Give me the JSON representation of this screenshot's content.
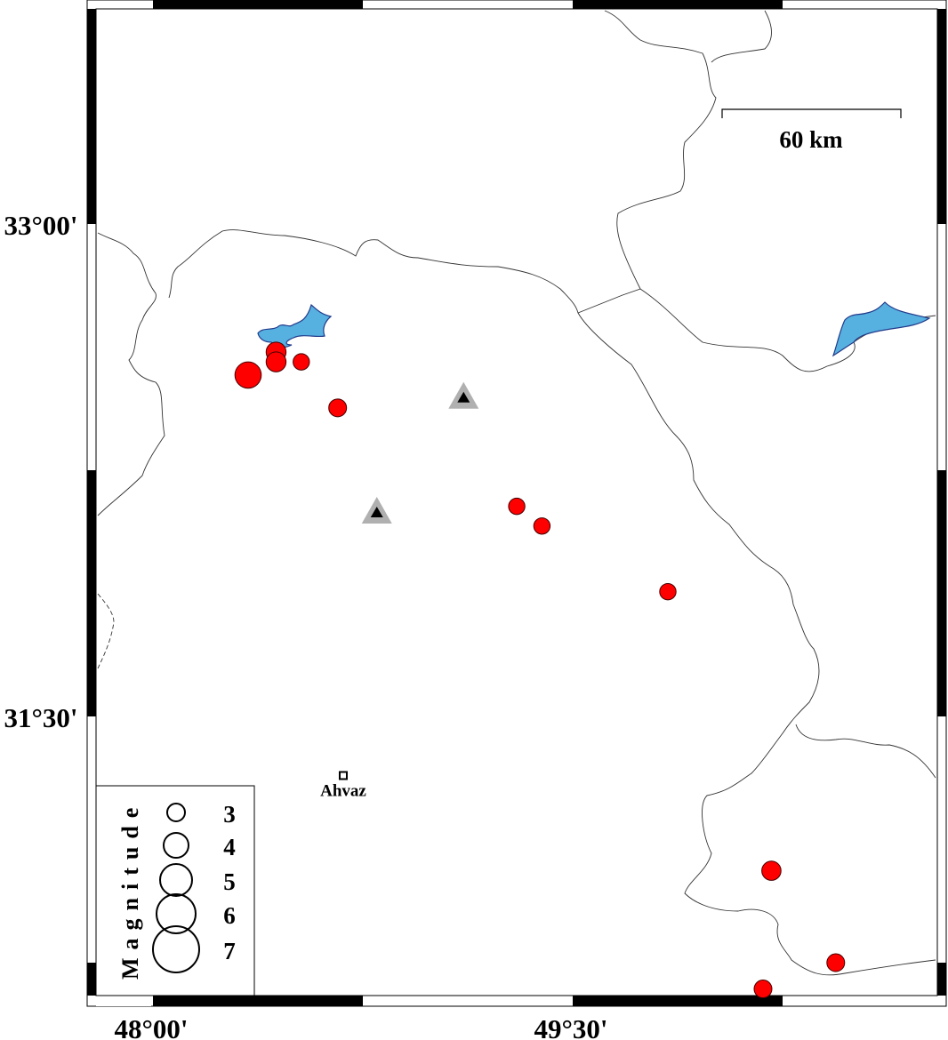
{
  "map": {
    "lon_ticks": [
      {
        "value": 48.0,
        "label": "48°00'"
      },
      {
        "value": 49.5,
        "label": "49°30'"
      }
    ],
    "lat_ticks": [
      {
        "value": 33.0,
        "label": "33°00'"
      },
      {
        "value": 31.5,
        "label": "31°30'"
      }
    ],
    "scale_bar": {
      "label": "60 km"
    },
    "colors": {
      "event": "#ff0000",
      "water": "#56b0e0",
      "station_outer": "#b0b0b0",
      "station_inner": "#000000"
    },
    "events": [
      {
        "lon": 48.34,
        "lat": 32.54,
        "mag": 4.2
      },
      {
        "lon": 48.44,
        "lat": 32.61,
        "mag": 3.3
      },
      {
        "lon": 48.44,
        "lat": 32.58,
        "mag": 3.3
      },
      {
        "lon": 48.53,
        "lat": 32.58,
        "mag": 2.8
      },
      {
        "lon": 48.66,
        "lat": 32.44,
        "mag": 3.0
      },
      {
        "lon": 49.3,
        "lat": 32.14,
        "mag": 2.8
      },
      {
        "lon": 49.39,
        "lat": 32.08,
        "mag": 2.8
      },
      {
        "lon": 49.84,
        "lat": 31.88,
        "mag": 2.8
      },
      {
        "lon": 50.21,
        "lat": 31.03,
        "mag": 3.2
      },
      {
        "lon": 50.44,
        "lat": 30.75,
        "mag": 3.0
      },
      {
        "lon": 50.18,
        "lat": 30.67,
        "mag": 3.0
      }
    ],
    "stations": [
      {
        "lon": 49.11,
        "lat": 32.47
      },
      {
        "lon": 48.8,
        "lat": 32.12
      }
    ],
    "cities": [
      {
        "name": "Ahvaz",
        "lon": 48.68,
        "lat": 31.32
      }
    ]
  },
  "legend": {
    "title": "Magnitude",
    "items": [
      {
        "mag": 3,
        "label": "3"
      },
      {
        "mag": 4,
        "label": "4"
      },
      {
        "mag": 5,
        "label": "5"
      },
      {
        "mag": 6,
        "label": "6"
      },
      {
        "mag": 7,
        "label": "7"
      }
    ]
  }
}
